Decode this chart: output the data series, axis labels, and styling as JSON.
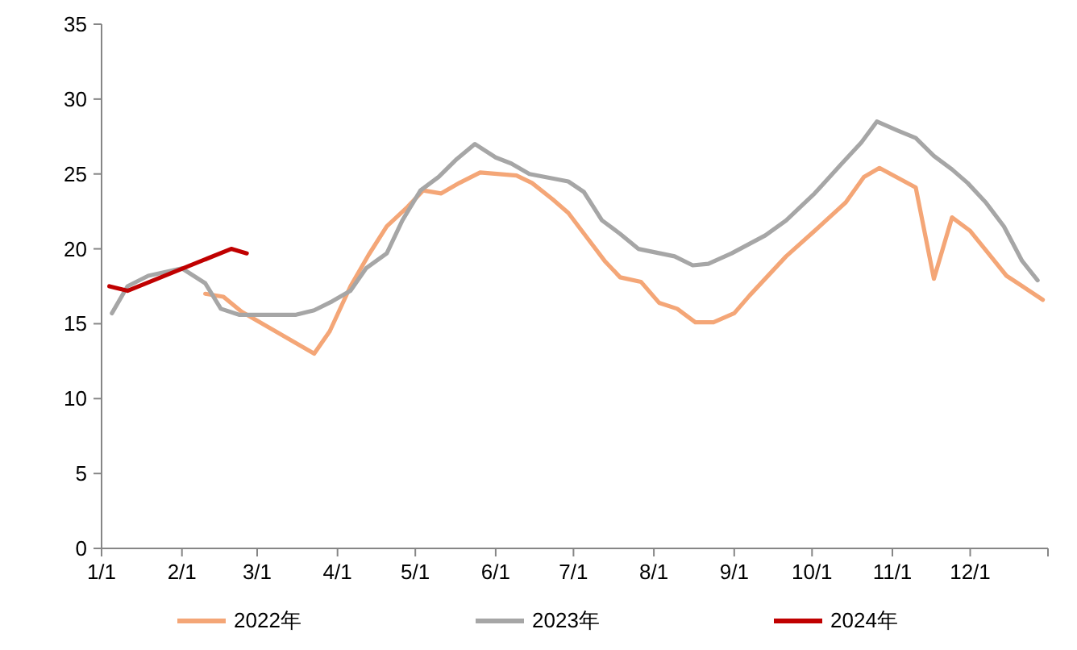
{
  "chart_data": {
    "type": "line",
    "xlim": [
      "--01-01",
      "--12-31"
    ],
    "xticks": [
      {
        "value": "--01-01",
        "label": "1/1"
      },
      {
        "value": "--02-01",
        "label": "2/1"
      },
      {
        "value": "--03-01",
        "label": "3/1"
      },
      {
        "value": "--04-01",
        "label": "4/1"
      },
      {
        "value": "--05-01",
        "label": "5/1"
      },
      {
        "value": "--06-01",
        "label": "6/1"
      },
      {
        "value": "--07-01",
        "label": "7/1"
      },
      {
        "value": "--08-01",
        "label": "8/1"
      },
      {
        "value": "--09-01",
        "label": "9/1"
      },
      {
        "value": "--10-01",
        "label": "10/1"
      },
      {
        "value": "--11-01",
        "label": "11/1"
      },
      {
        "value": "--12-01",
        "label": "12/1"
      }
    ],
    "ylim": [
      0,
      35
    ],
    "yticks": [
      0,
      5,
      10,
      15,
      20,
      25,
      30,
      35
    ],
    "grid": false,
    "legend": "bottom",
    "marker": "none",
    "line_style": "solid",
    "series": [
      {
        "name": "2022年",
        "color": "#f4a677",
        "x": [
          "--02-10",
          "--02-17",
          "--02-24",
          "--03-23",
          "--03-29",
          "--04-06",
          "--04-13",
          "--04-20",
          "--04-28",
          "--05-04",
          "--05-11",
          "--05-18",
          "--05-26",
          "--06-09",
          "--06-15",
          "--06-23",
          "--06-29",
          "--07-06",
          "--07-13",
          "--07-19",
          "--07-27",
          "--08-03",
          "--08-10",
          "--08-17",
          "--08-24",
          "--09-01",
          "--09-07",
          "--09-21",
          "--10-02",
          "--10-14",
          "--10-21",
          "--10-27",
          "--11-10",
          "--11-17",
          "--11-24",
          "--12-01",
          "--12-08",
          "--12-15",
          "--12-29"
        ],
        "values": [
          17.0,
          16.8,
          15.8,
          13.0,
          14.5,
          17.5,
          19.6,
          21.5,
          22.8,
          23.9,
          23.7,
          24.4,
          25.1,
          24.9,
          24.4,
          23.3,
          22.4,
          20.8,
          19.2,
          18.1,
          17.8,
          16.4,
          16.0,
          15.1,
          15.1,
          15.7,
          16.9,
          19.5,
          21.2,
          23.1,
          24.8,
          25.4,
          24.1,
          18.0,
          22.1,
          21.2,
          19.7,
          18.2,
          16.6
        ]
      },
      {
        "name": "2023年",
        "color": "#a6a6a6",
        "x": [
          "--01-05",
          "--01-11",
          "--01-19",
          "--02-01",
          "--02-10",
          "--02-16",
          "--02-23",
          "--03-16",
          "--03-23",
          "--03-30",
          "--04-06",
          "--04-12",
          "--04-20",
          "--04-26",
          "--05-03",
          "--05-10",
          "--05-17",
          "--05-24",
          "--06-01",
          "--06-07",
          "--06-14",
          "--06-29",
          "--07-05",
          "--07-12",
          "--07-19",
          "--07-26",
          "--08-09",
          "--08-16",
          "--08-22",
          "--08-31",
          "--09-13",
          "--09-21",
          "--10-02",
          "--10-12",
          "--10-20",
          "--10-26",
          "--11-03",
          "--11-10",
          "--11-17",
          "--11-24",
          "--11-30",
          "--12-07",
          "--12-14",
          "--12-21",
          "--12-27"
        ],
        "values": [
          15.7,
          17.5,
          18.2,
          18.7,
          17.7,
          16.0,
          15.6,
          15.6,
          15.9,
          16.5,
          17.2,
          18.7,
          19.7,
          21.9,
          23.9,
          24.8,
          26.0,
          27.0,
          26.1,
          25.7,
          25.0,
          24.5,
          23.8,
          21.9,
          21.0,
          20.0,
          19.5,
          18.9,
          19.0,
          19.7,
          20.9,
          21.9,
          23.7,
          25.6,
          27.1,
          28.5,
          27.9,
          27.4,
          26.2,
          25.3,
          24.4,
          23.1,
          21.5,
          19.2,
          17.9
        ]
      },
      {
        "name": "2024年",
        "color": "#c00000",
        "x": [
          "--01-04",
          "--01-11",
          "--02-20",
          "--02-26"
        ],
        "values": [
          17.5,
          17.2,
          20.0,
          19.7
        ]
      }
    ]
  }
}
